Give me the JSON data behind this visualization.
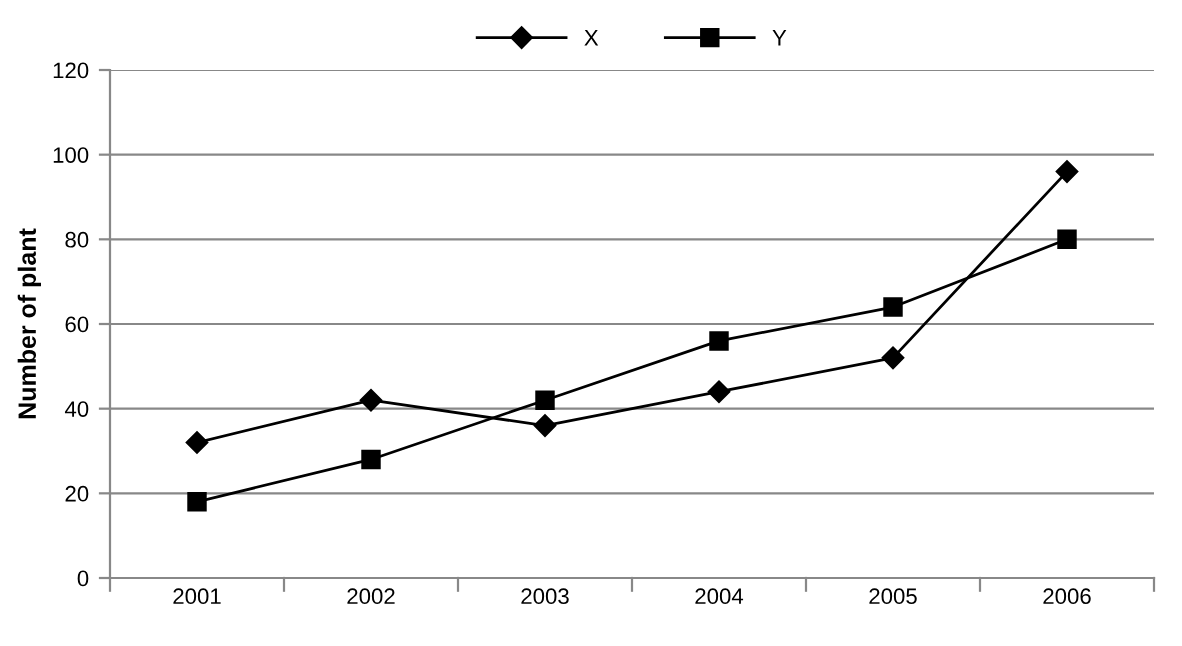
{
  "chart_data": {
    "type": "line",
    "ylabel": "Number of plant",
    "categories": [
      "2001",
      "2002",
      "2003",
      "2004",
      "2005",
      "2006"
    ],
    "series": [
      {
        "name": "X",
        "color": "#000000",
        "marker": "diamond",
        "values": [
          32,
          42,
          36,
          44,
          52,
          96
        ]
      },
      {
        "name": "Y",
        "color": "#000000",
        "marker": "square",
        "values": [
          18,
          28,
          42,
          56,
          64,
          80
        ]
      }
    ],
    "ylim": [
      0,
      120
    ],
    "yticks": [
      0,
      20,
      40,
      60,
      80,
      100,
      120
    ],
    "grid": "y",
    "legend": "top",
    "line_style": "solid"
  }
}
